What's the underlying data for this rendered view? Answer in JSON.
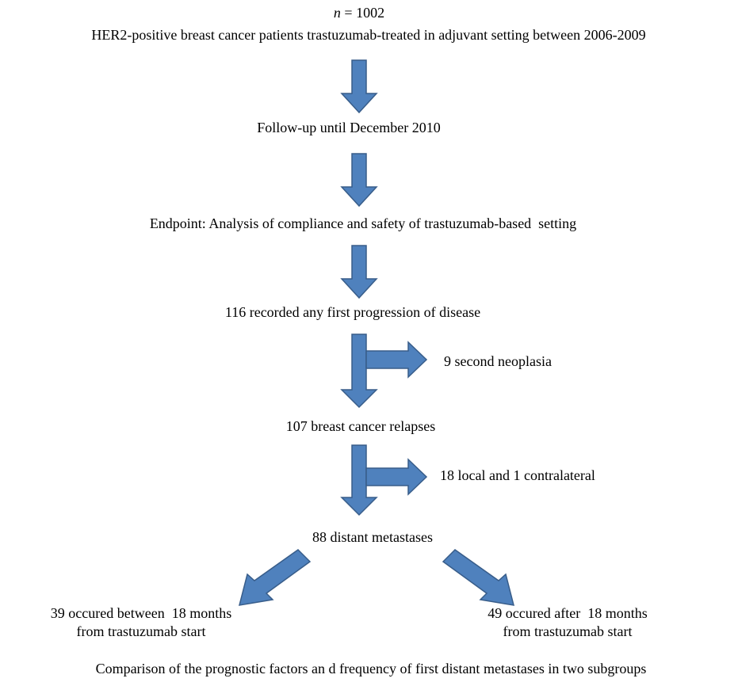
{
  "header": {
    "n_symbol": "n",
    "n_value": "= 1002",
    "population": "HER2-positive breast cancer patients trastuzumab-treated in adjuvant setting between 2006-2009"
  },
  "nodes": [
    {
      "label": "Follow-up until December 2010"
    },
    {
      "label": "Endpoint: Analysis of compliance and safety of trastuzumab-based  setting"
    },
    {
      "label": "116 recorded any first progression of disease"
    },
    {
      "label": "9 second neoplasia"
    },
    {
      "label": "107 breast cancer relapses"
    },
    {
      "label": "18 local and 1 contralateral"
    },
    {
      "label": "88 distant metastases"
    }
  ],
  "subgroups": [
    {
      "lines": [
        "39 occured between  18 months",
        "from trastuzumab start"
      ]
    },
    {
      "lines": [
        "49 occured after  18 months",
        "from trastuzumab start"
      ]
    }
  ],
  "footer": "Comparison of the prognostic factors an d frequency of first distant metastases in two subgroups"
}
